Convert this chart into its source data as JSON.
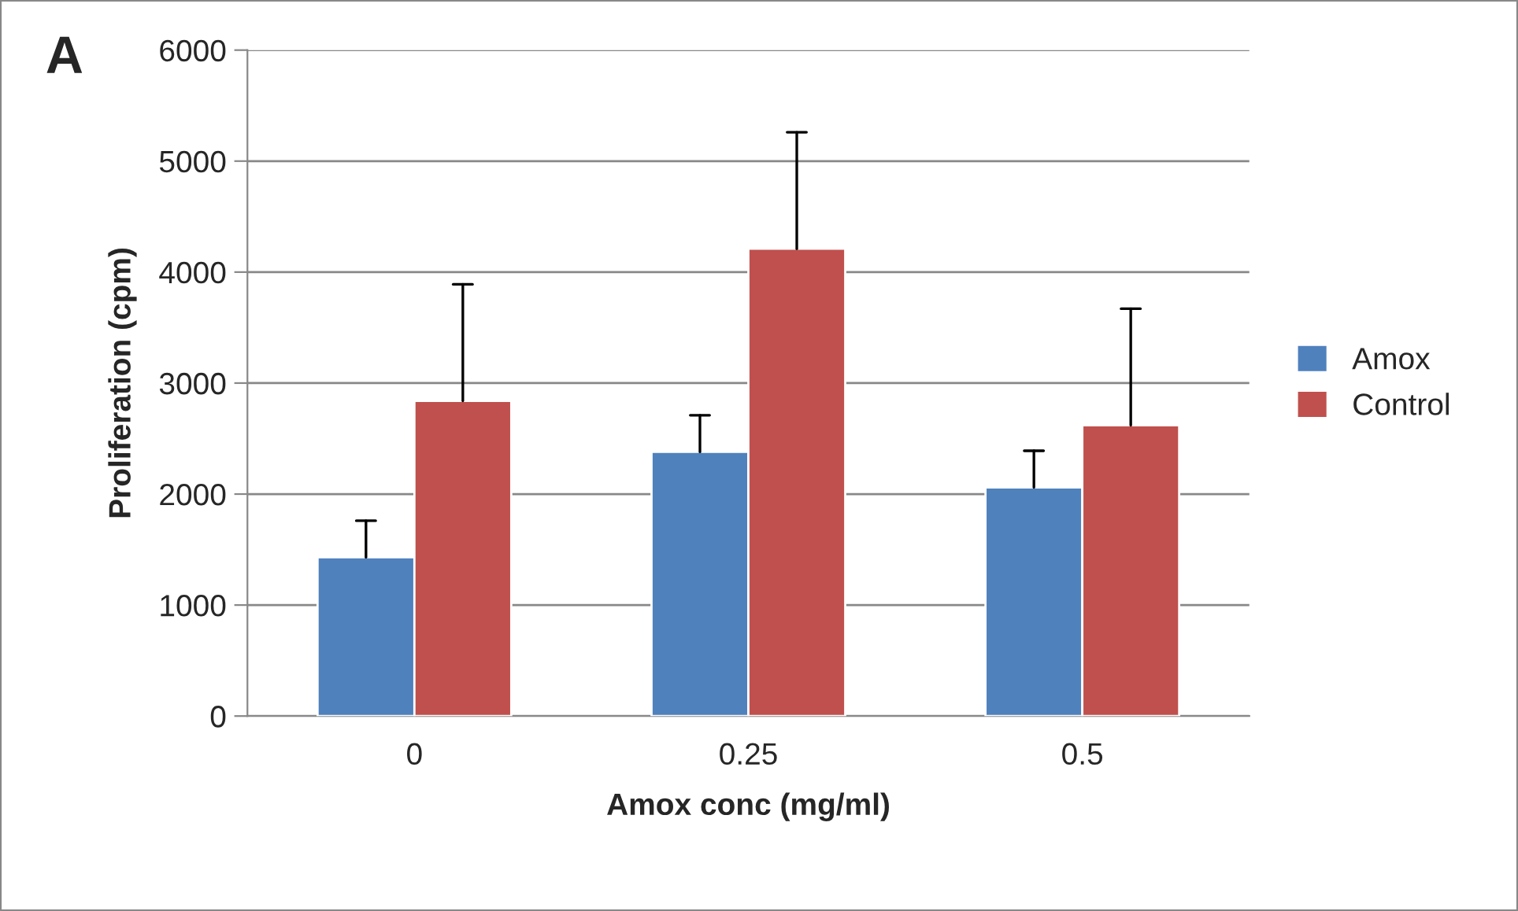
{
  "chart_data": {
    "type": "bar",
    "xlabel": "Amox conc (mg/ml)",
    "ylabel": "Proliferation (cpm)",
    "categories": [
      "0",
      "0.25",
      "0.5"
    ],
    "series": [
      {
        "name": "Amox",
        "color": "#4f81bd",
        "values": [
          1430,
          2380,
          2060
        ],
        "errors": [
          [
            1430,
            1760
          ],
          [
            2380,
            2710
          ],
          [
            2060,
            2390
          ]
        ]
      },
      {
        "name": "Control",
        "color": "#c0504d",
        "values": [
          2840,
          4210,
          2620
        ],
        "errors": [
          [
            2840,
            3890
          ],
          [
            4210,
            5260
          ],
          [
            2620,
            3670
          ]
        ]
      }
    ],
    "ylim": [
      0,
      6000
    ],
    "yticks": [
      0,
      1000,
      2000,
      3000,
      4000,
      5000,
      6000
    ],
    "grid": "y",
    "legend": "right",
    "annotations": [
      "A"
    ]
  }
}
